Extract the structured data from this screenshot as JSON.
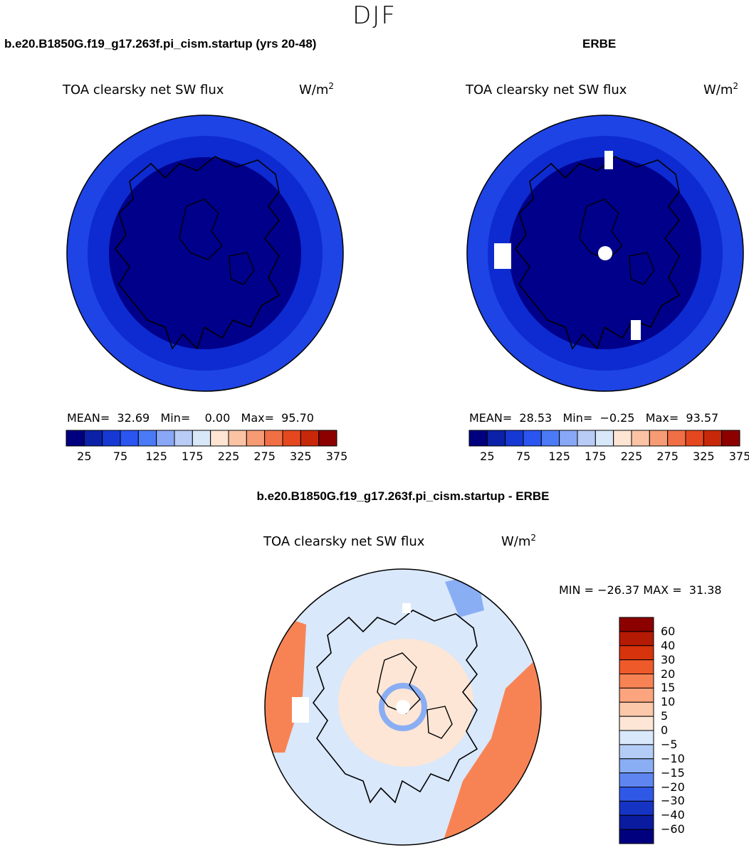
{
  "season": "DJF",
  "panels": [
    {
      "title": "b.e20.B1850G.f19_g17.263f.pi_cism.startup (yrs 20-48)",
      "variable": "TOA clearsky net SW flux",
      "units_base": "W/m",
      "units_exp": "2",
      "mean_label": "MEAN=",
      "mean_value": "32.69",
      "min_label": "Min=",
      "min_value": "0.00",
      "max_label": "Max=",
      "max_value": "95.70"
    },
    {
      "title": "ERBE",
      "variable": "TOA clearsky net SW flux",
      "units_base": "W/m",
      "units_exp": "2",
      "mean_label": "MEAN=",
      "mean_value": "28.53",
      "min_label": "Min=",
      "min_value": "−0.25",
      "max_label": "Max=",
      "max_value": "93.57"
    }
  ],
  "horizontal_colorbar": {
    "ticks": [
      "25",
      "75",
      "125",
      "175",
      "225",
      "275",
      "325",
      "375"
    ],
    "colors": [
      "#00007f",
      "#0a21a8",
      "#1639d4",
      "#2a55f0",
      "#4a7af6",
      "#88a8f7",
      "#b8ccf5",
      "#d8e8f8",
      "#fde4d3",
      "#fbc3a4",
      "#f79b74",
      "#f16f45",
      "#e5481e",
      "#c8280a",
      "#8c0000"
    ]
  },
  "difference_panel": {
    "title": "b.e20.B1850G.f19_g17.263f.pi_cism.startup - ERBE",
    "variable": "TOA clearsky net SW flux",
    "units_base": "W/m",
    "units_exp": "2",
    "min_label": "MIN =",
    "min_value": "−26.37",
    "max_label": "MAX =",
    "max_value": "31.38"
  },
  "vertical_colorbar": {
    "labels": [
      "60",
      "40",
      "30",
      "20",
      "15",
      "10",
      "5",
      "0",
      "−5",
      "−10",
      "−15",
      "−20",
      "−30",
      "−40",
      "−60"
    ],
    "colors": [
      "#8c0000",
      "#b51a05",
      "#d7330c",
      "#ef5a2a",
      "#f78355",
      "#fba47d",
      "#fcc8aa",
      "#fde6d6",
      "#d9e8fb",
      "#b4cdf7",
      "#8aaef4",
      "#5f86f0",
      "#2f58e6",
      "#1634c4",
      "#0a1ba0",
      "#00007f"
    ]
  },
  "map_colors": {
    "deep": "#00008b",
    "mid_blue": "#0d2bd0",
    "light_blue": "#1e44e6",
    "diff_background": "#d9e8fb",
    "diff_positive": "#fde6d6",
    "diff_strong_positive": "#f78355",
    "diff_negative": "#8aaef4"
  }
}
